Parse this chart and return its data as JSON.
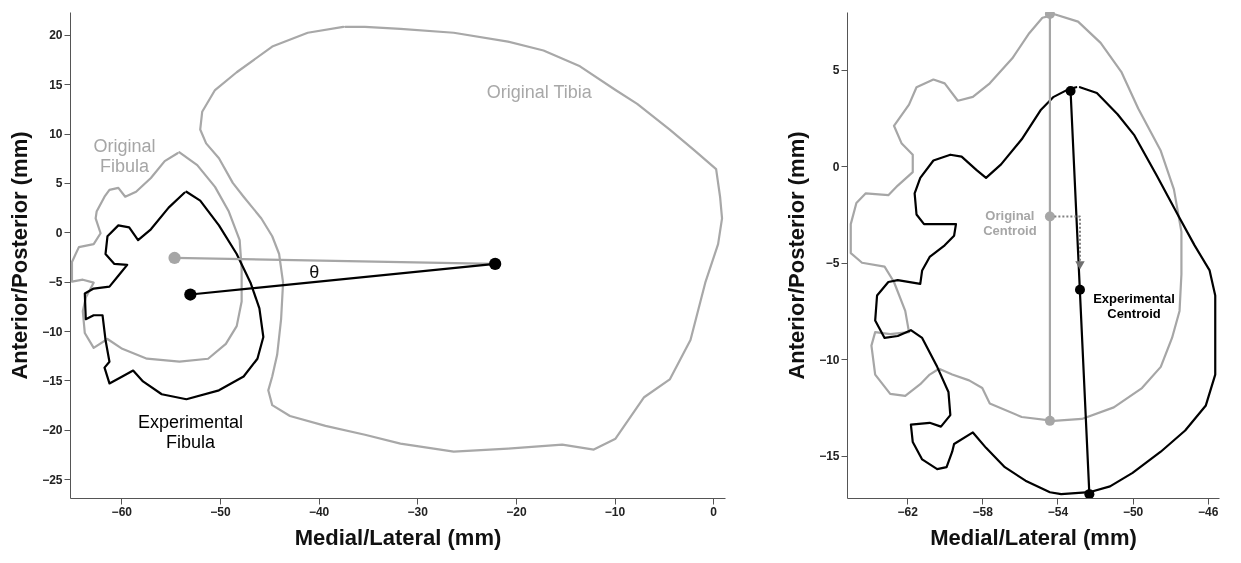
{
  "chart_data": [
    {
      "type": "line",
      "xlabel": "Medial/Lateral (mm)",
      "ylabel": "Anterior/Posterior (mm)",
      "xlim": [
        -65.2,
        1.2
      ],
      "ylim": [
        -26.9,
        22.3
      ],
      "xticks": [
        -60,
        -50,
        -40,
        -30,
        -20,
        -10,
        0
      ],
      "yticks": [
        -25,
        -20,
        -15,
        -10,
        -5,
        0,
        5,
        10,
        15,
        20
      ],
      "annotations": [
        "θ"
      ],
      "series": [
        {
          "name": "Original Tibia",
          "color": "#a8a8a8",
          "x": [
            -37.5,
            -41.1,
            -44.7,
            -48.3,
            -50.5,
            -51.8,
            -52.0,
            -51.4,
            -50.1,
            -48.7,
            -47.6,
            -45.8,
            -44.7,
            -44.0,
            -43.6,
            -43.8,
            -44.2,
            -44.7,
            -45.1,
            -44.7,
            -42.9,
            -39.3,
            -35.3,
            -31.7,
            -26.3,
            -20.8,
            -15.3,
            -12.1,
            -9.9,
            -7.0,
            -4.4,
            -2.3,
            -0.8,
            0.5,
            0.9,
            0.7,
            0.3,
            -1.9,
            -4.4,
            -7.7,
            -9.9,
            -13.5,
            -17.2,
            -20.8,
            -26.3,
            -31.7,
            -35.3,
            -37.3
          ],
          "values": [
            20.8,
            20.2,
            18.8,
            16.2,
            14.4,
            12.2,
            10.4,
            9.0,
            7.5,
            5.0,
            3.6,
            1.4,
            -0.4,
            -2.2,
            -5.1,
            -8.8,
            -12.4,
            -14.6,
            -16.0,
            -17.5,
            -18.6,
            -19.6,
            -20.5,
            -21.4,
            -22.2,
            -21.9,
            -21.5,
            -22.0,
            -20.9,
            -16.7,
            -14.9,
            -10.9,
            -5.1,
            -1.2,
            1.4,
            3.6,
            6.4,
            8.3,
            10.4,
            13.0,
            14.4,
            16.8,
            18.4,
            19.3,
            20.2,
            20.6,
            20.8,
            20.8
          ]
        },
        {
          "name": "Original Fibula",
          "color": "#a6a6a6",
          "x": [
            -54.1,
            -52.3,
            -50.5,
            -49.1,
            -48.0,
            -47.8,
            -47.8,
            -48.3,
            -49.4,
            -51.2,
            -54.1,
            -57.4,
            -59.9,
            -61.4,
            -62.8,
            -63.7,
            -63.9,
            -63.6,
            -62.8,
            -63.9,
            -65.0,
            -65.0,
            -64.3,
            -62.8,
            -62.1,
            -62.6,
            -62.5,
            -61.7,
            -61.2,
            -60.3,
            -59.6,
            -58.5,
            -57.0,
            -55.6,
            -54.3
          ],
          "values": [
            8.1,
            6.8,
            4.6,
            2.1,
            -0.8,
            -3.7,
            -7.0,
            -9.5,
            -11.3,
            -12.8,
            -13.1,
            -12.8,
            -11.8,
            -10.8,
            -11.7,
            -10.2,
            -8.0,
            -6.6,
            -5.1,
            -4.8,
            -5.0,
            -3.0,
            -1.5,
            -1.2,
            -0.1,
            1.4,
            2.1,
            3.6,
            4.3,
            4.5,
            3.6,
            4.1,
            5.5,
            7.2,
            8.0
          ]
        },
        {
          "name": "Experimental Fibula",
          "color": "#000000",
          "x": [
            -53.4,
            -52.0,
            -50.1,
            -48.3,
            -46.9,
            -46.0,
            -45.6,
            -46.2,
            -47.6,
            -50.1,
            -53.4,
            -55.9,
            -57.8,
            -58.8,
            -59.9,
            -61.2,
            -61.7,
            -61.2,
            -61.6,
            -61.9,
            -62.8,
            -63.6,
            -63.7,
            -62.8,
            -61.2,
            -60.3,
            -59.4,
            -60.7,
            -61.6,
            -61.4,
            -60.3,
            -59.2,
            -58.3,
            -57.0,
            -55.2,
            -53.6
          ],
          "values": [
            4.1,
            3.2,
            0.7,
            -2.2,
            -5.1,
            -7.7,
            -10.6,
            -12.8,
            -14.6,
            -16.0,
            -16.9,
            -16.4,
            -15.1,
            -14.0,
            -14.6,
            -15.3,
            -13.7,
            -13.1,
            -10.9,
            -8.4,
            -8.4,
            -8.8,
            -6.2,
            -5.7,
            -5.5,
            -4.4,
            -3.3,
            -3.2,
            -2.2,
            -0.4,
            0.7,
            0.5,
            -0.8,
            0.3,
            2.5,
            4.0
          ]
        },
        {
          "color": "#a6a6a6",
          "x": [
            -54.6,
            -22.1
          ],
          "values": [
            -2.6,
            -3.2
          ]
        },
        {
          "color": "#000000",
          "x": [
            -53.0,
            -22.1
          ],
          "values": [
            -6.3,
            -3.2
          ]
        },
        {
          "type": "scatter",
          "marker": "circle",
          "color": "#a6a6a6",
          "x": [
            -54.6
          ],
          "values": [
            -2.6
          ]
        },
        {
          "type": "scatter",
          "marker": "circle",
          "color": "#000000",
          "x": [
            -53.0,
            -22.1
          ],
          "values": [
            -6.3,
            -3.2
          ]
        }
      ]
    },
    {
      "type": "line",
      "xlabel": "Medial/Lateral (mm)",
      "ylabel": "Anterior/Posterior (mm)",
      "xlim": [
        -65.2,
        -45.4
      ],
      "ylim": [
        -17.2,
        8
      ],
      "xticks": [
        -62,
        -58,
        -54,
        -50,
        -46
      ],
      "yticks": [
        -15,
        -10,
        -5,
        0,
        5
      ],
      "series": [
        {
          "color": "#a6a6a6",
          "x": [
            -54.2,
            -52.9,
            -51.7,
            -50.6,
            -49.7,
            -48.5,
            -47.8,
            -47.4,
            -47.4,
            -47.5,
            -47.9,
            -48.5,
            -49.5,
            -51.0,
            -52.7,
            -54.2,
            -55.9,
            -57.6,
            -58.0,
            -58.7,
            -59.6,
            -60.3,
            -60.8,
            -61.3,
            -62.1,
            -62.9,
            -63.7,
            -63.9,
            -63.7,
            -62.9,
            -61.9,
            -62.1,
            -62.7,
            -63.2,
            -64.4,
            -65.0,
            -65.0,
            -64.7,
            -64.2,
            -63.0,
            -62.5,
            -61.7,
            -61.7,
            -62.3,
            -62.7,
            -61.9,
            -61.5,
            -60.6,
            -60.0,
            -59.3,
            -58.5,
            -57.6,
            -56.4,
            -55.5,
            -54.8,
            -54.4
          ],
          "values": [
            7.9,
            7.5,
            6.4,
            4.9,
            3.0,
            0.8,
            -1.2,
            -3.4,
            -5.6,
            -7.5,
            -8.9,
            -10.4,
            -11.5,
            -12.5,
            -13.1,
            -13.2,
            -13.0,
            -12.3,
            -11.5,
            -11.1,
            -10.8,
            -10.5,
            -10.8,
            -11.3,
            -11.9,
            -11.8,
            -10.8,
            -9.3,
            -8.6,
            -8.7,
            -8.6,
            -7.5,
            -6.0,
            -5.2,
            -5.0,
            -4.5,
            -3.0,
            -1.9,
            -1.4,
            -1.5,
            -1.0,
            -0.3,
            0.6,
            1.2,
            2.1,
            3.2,
            4.1,
            4.5,
            4.3,
            3.4,
            3.6,
            4.3,
            5.6,
            6.9,
            7.7,
            7.8
          ]
        },
        {
          "color": "#000000",
          "x": [
            -52.8,
            -51.9,
            -50.8,
            -49.9,
            -48.7,
            -47.6,
            -46.7,
            -45.9,
            -45.6,
            -45.6,
            -45.6,
            -46.1,
            -47.2,
            -48.5,
            -50.0,
            -51.2,
            -52.3,
            -53.8,
            -54.4,
            -55.7,
            -56.8,
            -57.8,
            -58.5,
            -59.5,
            -59.6,
            -59.9,
            -60.4,
            -61.2,
            -61.7,
            -61.8,
            -60.8,
            -60.2,
            -59.7,
            -59.8,
            -60.4,
            -61.2,
            -61.8,
            -62.5,
            -63.2,
            -63.7,
            -63.6,
            -63.0,
            -62.5,
            -61.3,
            -61.2,
            -60.8,
            -60.0,
            -59.5,
            -59.4,
            -60.0,
            -61.1,
            -61.5,
            -61.6,
            -61.3,
            -60.6,
            -59.7,
            -59.1,
            -58.3,
            -57.8,
            -57.0,
            -55.9,
            -54.9,
            -54.2,
            -53.4,
            -53.0
          ],
          "values": [
            4.1,
            3.8,
            2.7,
            1.6,
            -0.5,
            -2.5,
            -4.1,
            -5.4,
            -6.7,
            -8.4,
            -10.8,
            -12.4,
            -13.7,
            -14.8,
            -15.9,
            -16.6,
            -16.9,
            -17.0,
            -16.9,
            -16.3,
            -15.6,
            -14.6,
            -13.8,
            -14.4,
            -14.8,
            -15.6,
            -15.7,
            -15.2,
            -14.3,
            -13.4,
            -13.3,
            -13.5,
            -12.9,
            -11.7,
            -10.4,
            -8.9,
            -8.5,
            -8.8,
            -8.9,
            -8.0,
            -6.7,
            -6.0,
            -5.9,
            -6.1,
            -5.4,
            -4.7,
            -4.1,
            -3.6,
            -3.0,
            -3.0,
            -3.0,
            -2.5,
            -1.4,
            -0.6,
            0.3,
            0.6,
            0.5,
            -0.2,
            -0.6,
            0.1,
            1.4,
            2.9,
            3.6,
            4.0,
            4.1
          ]
        },
        {
          "color": "#a6a6a6",
          "x": [
            -54.4,
            -54.4
          ],
          "values": [
            7.9,
            -13.2
          ]
        },
        {
          "color": "#000000",
          "x": [
            -53.3,
            -52.3
          ],
          "values": [
            3.9,
            -17.0
          ]
        },
        {
          "type": "scatter",
          "marker": "circle",
          "color": "#a6a6a6",
          "x": [
            -54.4,
            -54.4
          ],
          "values": [
            7.9,
            -13.2
          ]
        },
        {
          "type": "scatter",
          "marker": "circle",
          "color": "#000000",
          "x": [
            -53.3,
            -52.3
          ],
          "values": [
            3.9,
            -17.0
          ]
        },
        {
          "name": "Original Centroid",
          "type": "scatter",
          "marker": "circle",
          "color": "#a6a6a6",
          "x": [
            -54.4
          ],
          "values": [
            -2.6
          ]
        },
        {
          "name": "Experimental Centroid",
          "type": "scatter",
          "marker": "circle",
          "color": "#000000",
          "x": [
            -52.8
          ],
          "values": [
            -6.4
          ]
        }
      ]
    }
  ]
}
